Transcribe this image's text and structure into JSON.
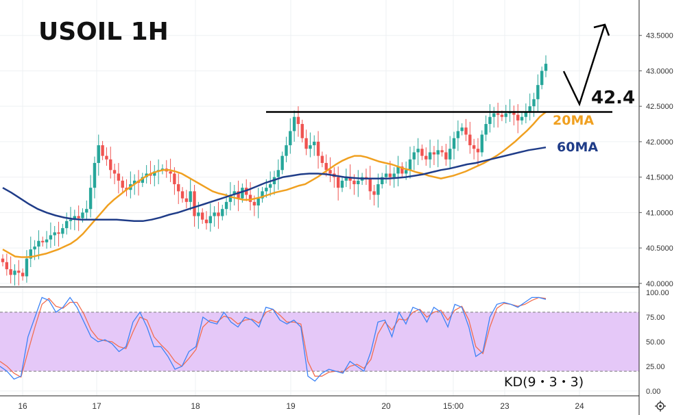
{
  "chart_data": {
    "type": "candlestick",
    "title": "USOIL 1H",
    "price_axis": {
      "ticks": [
        "40.0000",
        "40.5000",
        "41.0000",
        "41.5000",
        "42.0000",
        "42.5000",
        "43.0000",
        "43.5000"
      ],
      "ylim": [
        39.95,
        44.0
      ]
    },
    "time_axis": {
      "ticks": [
        "16",
        "17",
        "18",
        "19",
        "20",
        "15:00",
        "23",
        "24"
      ]
    },
    "candles": {
      "open": [
        40.35,
        40.3,
        40.2,
        40.12,
        40.18,
        40.15,
        40.1,
        40.35,
        40.48,
        40.52,
        40.6,
        40.58,
        40.62,
        40.68,
        40.72,
        40.7,
        40.78,
        40.88,
        40.9,
        40.95,
        40.92,
        41.0,
        41.05,
        41.35,
        41.7,
        41.95,
        41.8,
        41.75,
        41.6,
        41.55,
        41.45,
        41.35,
        41.32,
        41.4,
        41.45,
        41.42,
        41.5,
        41.55,
        41.52,
        41.58,
        41.6,
        41.62,
        41.58,
        41.55,
        41.4,
        41.3,
        41.2,
        41.15,
        41.3,
        40.95,
        41.0,
        40.9,
        40.85,
        40.95,
        41.0,
        40.95,
        41.05,
        41.15,
        41.25,
        41.3,
        41.2,
        41.35,
        41.25,
        41.15,
        41.1,
        41.2,
        41.3,
        41.35,
        41.4,
        41.5,
        41.6,
        41.8,
        41.95,
        42.15,
        42.35,
        42.25,
        42.05,
        41.9,
        41.95,
        42.0,
        41.8,
        41.7,
        41.6,
        41.55,
        41.5,
        41.35,
        41.45,
        41.5,
        41.45,
        41.4,
        41.45,
        41.5,
        41.48,
        41.3,
        41.25,
        41.4,
        41.5,
        41.55,
        41.5,
        41.55,
        41.65,
        41.55,
        41.6,
        41.75,
        41.85,
        41.9,
        41.8,
        41.75,
        41.85,
        41.82,
        41.88,
        41.85,
        41.75,
        41.9,
        42.05,
        42.15,
        42.2,
        42.1,
        41.95,
        41.9,
        41.85,
        42.1,
        42.25,
        42.35,
        42.4,
        42.38,
        42.35,
        42.4,
        42.42,
        42.38,
        42.3,
        42.35,
        42.42,
        42.5,
        42.6,
        42.8,
        43.0
      ],
      "close": [
        40.3,
        40.2,
        40.12,
        40.18,
        40.15,
        40.1,
        40.35,
        40.48,
        40.52,
        40.6,
        40.58,
        40.62,
        40.68,
        40.72,
        40.7,
        40.78,
        40.88,
        40.9,
        40.95,
        40.92,
        41.0,
        41.05,
        41.35,
        41.7,
        41.95,
        41.8,
        41.75,
        41.6,
        41.55,
        41.45,
        41.35,
        41.32,
        41.4,
        41.45,
        41.42,
        41.5,
        41.55,
        41.52,
        41.58,
        41.6,
        41.62,
        41.58,
        41.55,
        41.4,
        41.3,
        41.2,
        41.15,
        41.3,
        40.95,
        41.0,
        40.9,
        40.85,
        40.95,
        41.0,
        40.95,
        41.05,
        41.15,
        41.25,
        41.3,
        41.2,
        41.35,
        41.25,
        41.15,
        41.1,
        41.2,
        41.3,
        41.35,
        41.4,
        41.5,
        41.6,
        41.8,
        41.95,
        42.15,
        42.35,
        42.25,
        42.05,
        41.9,
        41.95,
        42.0,
        41.8,
        41.7,
        41.6,
        41.55,
        41.5,
        41.35,
        41.45,
        41.5,
        41.45,
        41.4,
        41.45,
        41.5,
        41.48,
        41.3,
        41.25,
        41.4,
        41.5,
        41.55,
        41.5,
        41.55,
        41.65,
        41.55,
        41.6,
        41.75,
        41.85,
        41.9,
        41.8,
        41.75,
        41.85,
        41.82,
        41.88,
        41.85,
        41.75,
        41.9,
        42.05,
        42.15,
        42.2,
        42.1,
        41.95,
        41.9,
        41.85,
        42.1,
        42.25,
        42.35,
        42.4,
        42.38,
        42.35,
        42.4,
        42.42,
        42.38,
        42.3,
        42.35,
        42.42,
        42.5,
        42.6,
        42.8,
        43.0,
        43.1
      ]
    },
    "series": [
      {
        "name": "20MA",
        "color": "#f0a020",
        "start_index": 0,
        "values": [
          40.48,
          40.43,
          40.38,
          40.37,
          40.37,
          40.38,
          40.4,
          40.42,
          40.45,
          40.48,
          40.52,
          40.56,
          40.62,
          40.7,
          40.8,
          40.9,
          41.0,
          41.1,
          41.18,
          41.25,
          41.32,
          41.38,
          41.44,
          41.5,
          41.55,
          41.58,
          41.6,
          41.6,
          41.58,
          41.55,
          41.5,
          41.45,
          41.4,
          41.35,
          41.3,
          41.27,
          41.25,
          41.22,
          41.2,
          41.18,
          41.18,
          41.2,
          41.22,
          41.25,
          41.28,
          41.3,
          41.32,
          41.35,
          41.38,
          41.4,
          41.45,
          41.5,
          41.56,
          41.62,
          41.68,
          41.73,
          41.77,
          41.8,
          41.8,
          41.78,
          41.75,
          41.72,
          41.7,
          41.68,
          41.65,
          41.62,
          41.6,
          41.57,
          41.55,
          41.52,
          41.5,
          41.48,
          41.5,
          41.52,
          41.55,
          41.58,
          41.62,
          41.66,
          41.7,
          41.75,
          41.8,
          41.86,
          41.93,
          42.0,
          42.08,
          42.16,
          42.25,
          42.35,
          42.42
        ]
      },
      {
        "name": "60MA",
        "color": "#1f3c88",
        "start_index": 0,
        "values": [
          41.35,
          41.28,
          41.2,
          41.12,
          41.05,
          41.0,
          40.96,
          40.93,
          40.91,
          40.9,
          40.9,
          40.9,
          40.9,
          40.9,
          40.89,
          40.88,
          40.88,
          40.9,
          40.93,
          40.97,
          41.0,
          41.04,
          41.08,
          41.12,
          41.16,
          41.2,
          41.24,
          41.28,
          41.32,
          41.37,
          41.42,
          41.46,
          41.5,
          41.52,
          41.54,
          41.55,
          41.55,
          41.54,
          41.52,
          41.5,
          41.49,
          41.48,
          41.48,
          41.48,
          41.48,
          41.49,
          41.5,
          41.52,
          41.54,
          41.57,
          41.6,
          41.62,
          41.65,
          41.68,
          41.7,
          41.73,
          41.76,
          41.79,
          41.82,
          41.85,
          41.88,
          41.9,
          41.92
        ]
      }
    ],
    "resistance_line": {
      "value": 42.42
    },
    "annotations": [
      {
        "text": "42.4",
        "color": "#111111"
      },
      {
        "text": "20MA",
        "color": "#f0a020"
      },
      {
        "text": "60MA",
        "color": "#1f3c88"
      }
    ],
    "kd": {
      "label": "KD(9・3・3)",
      "ticks": [
        "0.00",
        "25.00",
        "50.00",
        "75.00",
        "100.00"
      ],
      "ylim": [
        -5,
        105
      ],
      "band": [
        20,
        80
      ],
      "k_color": "#3b82f6",
      "d_color": "#f26d50",
      "band_color": "#e5c8f8",
      "k": [
        25,
        20,
        12,
        15,
        55,
        75,
        95,
        92,
        80,
        85,
        95,
        85,
        70,
        55,
        50,
        52,
        48,
        40,
        45,
        70,
        80,
        65,
        45,
        45,
        35,
        22,
        25,
        40,
        45,
        75,
        70,
        68,
        80,
        70,
        65,
        75,
        72,
        65,
        85,
        83,
        72,
        68,
        72,
        65,
        15,
        10,
        18,
        22,
        20,
        18,
        30,
        25,
        20,
        40,
        70,
        72,
        55,
        80,
        68,
        85,
        82,
        70,
        85,
        80,
        65,
        88,
        85,
        65,
        35,
        40,
        75,
        88,
        90,
        88,
        85,
        90,
        95,
        95,
        93
      ],
      "d": [
        30,
        25,
        18,
        14,
        40,
        65,
        88,
        94,
        86,
        84,
        90,
        90,
        78,
        62,
        53,
        51,
        50,
        45,
        43,
        60,
        75,
        72,
        55,
        47,
        40,
        30,
        25,
        33,
        42,
        65,
        72,
        70,
        76,
        74,
        68,
        72,
        73,
        69,
        80,
        83,
        77,
        70,
        70,
        68,
        30,
        15,
        15,
        19,
        20,
        19,
        25,
        27,
        23,
        32,
        58,
        70,
        62,
        73,
        72,
        80,
        83,
        75,
        80,
        82,
        72,
        82,
        86,
        72,
        45,
        38,
        65,
        84,
        89,
        88,
        86,
        88,
        92,
        95,
        94
      ]
    }
  }
}
